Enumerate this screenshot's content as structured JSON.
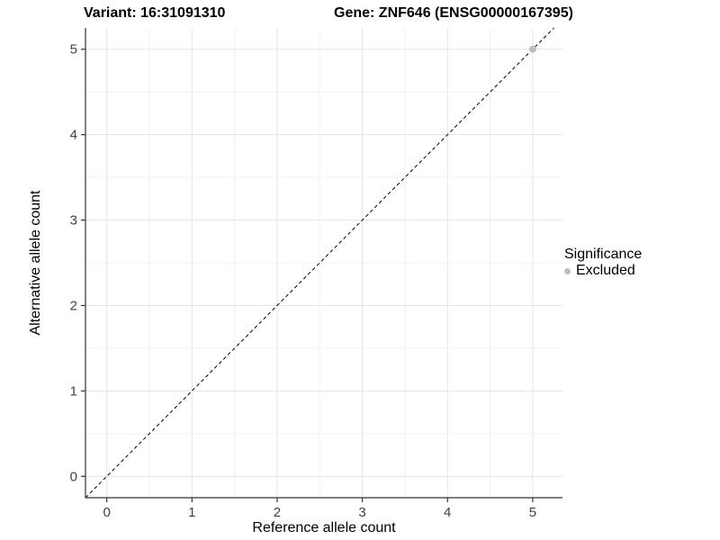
{
  "chart_data": {
    "type": "scatter",
    "title_left": "Variant: 16:31091310",
    "title_right": "Gene: ZNF646 (ENSG00000167395)",
    "xlabel": "Reference allele count",
    "ylabel": "Alternative allele count",
    "xlim": [
      -0.25,
      5.35
    ],
    "ylim": [
      -0.25,
      5.25
    ],
    "xticks": [
      0,
      1,
      2,
      3,
      4,
      5
    ],
    "yticks": [
      0,
      1,
      2,
      3,
      4,
      5
    ],
    "minor_ticks_x": [
      0.5,
      1.5,
      2.5,
      3.5,
      4.5
    ],
    "minor_ticks_y": [
      0.5,
      1.5,
      2.5,
      3.5,
      4.5
    ],
    "grid": true,
    "legend": {
      "title": "Significance",
      "position": "right",
      "items": [
        {
          "label": "Excluded",
          "color": "#bdbdbd"
        }
      ]
    },
    "series": [
      {
        "name": "Excluded",
        "color": "#bdbdbd",
        "points": [
          {
            "x": 5,
            "y": 5
          }
        ]
      }
    ],
    "reference_line": {
      "equation": "y = x",
      "style": "dashed",
      "color": "#000000"
    },
    "colors": {
      "background": "#ffffff",
      "grid_major": "#e4e4e4",
      "grid_minor": "#f2f2f2",
      "axis_line": "#333333",
      "tick_text": "#404040"
    }
  }
}
